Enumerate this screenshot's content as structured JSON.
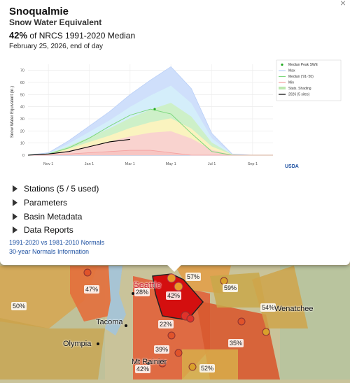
{
  "popup": {
    "title": "Snoqualmie",
    "subtitle": "Snow Water Equivalent",
    "percent": "42%",
    "percent_suffix": "of NRCS 1991-2020 Median",
    "date": "February 25, 2026, end of day",
    "sections": [
      "Stations (5 / 5 used)",
      "Parameters",
      "Basin Metadata",
      "Data Reports"
    ],
    "links": [
      "1991-2020 vs 1981-2010 Normals",
      "30-year Normals Information"
    ],
    "close_icon": "×",
    "logo_text": "USDA"
  },
  "chart_data": {
    "type": "area",
    "ylabel": "Snow Water Equivalent (in.)",
    "ylim": [
      0,
      75
    ],
    "yticks": [
      0,
      10,
      20,
      30,
      40,
      50,
      60,
      70
    ],
    "xticks": [
      "Nov 1",
      "Jan 1",
      "Mar 1",
      "May 1",
      "Jul 1",
      "Sep 1"
    ],
    "x_dates": [
      "Oct 1",
      "Nov 1",
      "Dec 1",
      "Jan 1",
      "Feb 1",
      "Mar 1",
      "Apr 1",
      "May 1",
      "Jun 1",
      "Jul 1",
      "Aug 1",
      "Sep 1",
      "Oct 1"
    ],
    "series": [
      {
        "name": "Max",
        "color": "#b9cff7",
        "values": [
          0,
          2,
          12,
          24,
          36,
          50,
          62,
          73,
          55,
          18,
          1,
          0,
          0
        ]
      },
      {
        "name": "Median ('91-'20)",
        "color": "#7dd87d",
        "values": [
          0,
          1,
          6,
          14,
          24,
          33,
          38,
          34,
          18,
          3,
          0,
          0,
          0
        ]
      },
      {
        "name": "Min",
        "color": "#f4a0a0",
        "values": [
          0,
          0,
          1,
          2,
          3,
          4,
          4,
          2,
          0,
          0,
          0,
          0,
          0
        ]
      },
      {
        "name": "2026 (5 sites)",
        "color": "#000000",
        "values": [
          0,
          1,
          3,
          7,
          11,
          13
        ]
      }
    ],
    "median_peak": {
      "label": "Median Peak SWE",
      "x": "Apr 1",
      "value": 38
    },
    "legend": [
      "Median Peak SWE",
      "Max",
      "Median ('91-'20)",
      "Min",
      "Stats. Shading",
      "2026 (5 sites)"
    ],
    "legend_position": "top-right",
    "grid": true
  },
  "map": {
    "basin_labels": [
      "47%",
      "28%",
      "42%",
      "57%",
      "59%",
      "54%",
      "50%",
      "22%",
      "39%",
      "35%",
      "42%",
      "52%"
    ],
    "cities": [
      "Seattle",
      "Tacoma",
      "Olympia",
      "Mt Rainier",
      "Wenatchee"
    ],
    "colors": {
      "high": "#e23b2a",
      "mid": "#e48a4a",
      "low": "#d8a84a",
      "selected": "#d40f0f",
      "land": "#c8c19a"
    }
  }
}
